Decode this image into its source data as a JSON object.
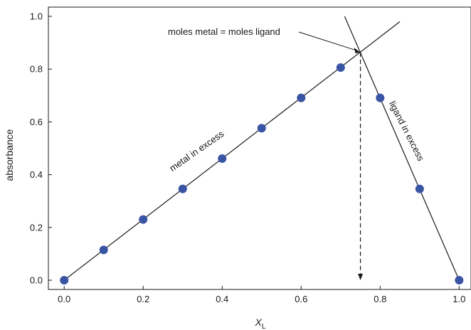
{
  "chart_data": {
    "type": "scatter",
    "title": "",
    "xlabel": "X",
    "xlabel_subscript": "L",
    "ylabel": "absorbance",
    "xlim": [
      -0.04,
      1.03
    ],
    "ylim": [
      -0.035,
      1.035
    ],
    "grid": false,
    "legend": "none",
    "x_ticks": [
      "0.0",
      "0.2",
      "0.4",
      "0.6",
      "0.8",
      "1.0"
    ],
    "x_tick_values": [
      0.0,
      0.2,
      0.4,
      0.6,
      0.8,
      1.0
    ],
    "y_ticks": [
      "0.0",
      "0.2",
      "0.4",
      "0.6",
      "0.8",
      "1.0"
    ],
    "y_tick_values": [
      0.0,
      0.2,
      0.4,
      0.6,
      0.8,
      1.0
    ],
    "points": [
      {
        "x": 0.0,
        "y": 0.0
      },
      {
        "x": 0.1,
        "y": 0.115
      },
      {
        "x": 0.2,
        "y": 0.23
      },
      {
        "x": 0.3,
        "y": 0.346
      },
      {
        "x": 0.4,
        "y": 0.461
      },
      {
        "x": 0.5,
        "y": 0.576
      },
      {
        "x": 0.6,
        "y": 0.691
      },
      {
        "x": 0.7,
        "y": 0.806
      },
      {
        "x": 0.8,
        "y": 0.691
      },
      {
        "x": 0.9,
        "y": 0.346
      },
      {
        "x": 1.0,
        "y": 0.0
      }
    ],
    "fit_lines": [
      {
        "x": [
          0.0,
          0.85
        ],
        "y": [
          0.0,
          0.98
        ]
      },
      {
        "x": [
          0.71,
          1.0
        ],
        "y": [
          1.0,
          0.0
        ]
      }
    ],
    "reference_line": {
      "x": 0.75,
      "y": [
        0.863,
        0.0
      ]
    },
    "annotations": [
      {
        "text": "moles metal = moles ligand",
        "x": 0.75,
        "y": 0.863
      },
      {
        "text": "metal in excess",
        "x": 0.34,
        "y": 0.48
      },
      {
        "text": "ligand in excess",
        "x": 0.86,
        "y": 0.56
      }
    ],
    "colors": {
      "points": "#3a54a4",
      "lines": "#1a1a1a"
    }
  }
}
